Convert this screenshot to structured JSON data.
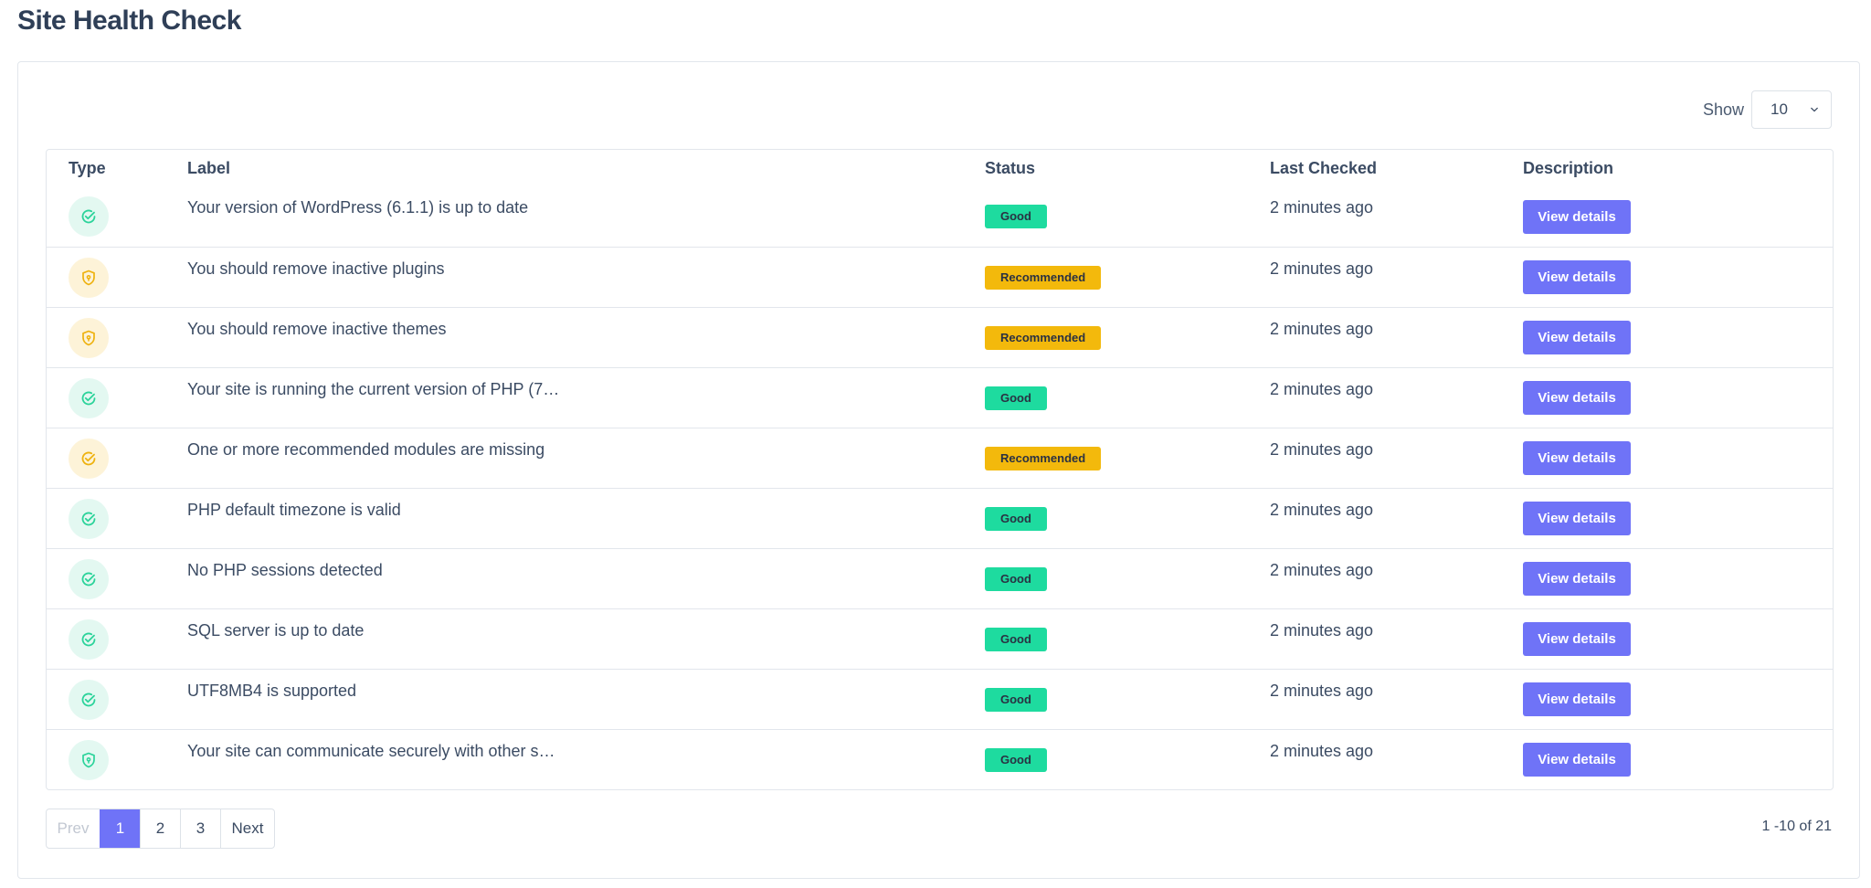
{
  "page": {
    "title": "Site Health Check"
  },
  "show": {
    "label": "Show",
    "value": "10"
  },
  "table": {
    "headers": {
      "type": "Type",
      "label": "Label",
      "status": "Status",
      "last_checked": "Last Checked",
      "description": "Description"
    },
    "rows": [
      {
        "icon": "check-circle-icon",
        "tone": "good",
        "label": "Your version of WordPress (6.1.1) is up to date",
        "status": "Good",
        "last_checked": "2 minutes ago",
        "action": "View details"
      },
      {
        "icon": "shield-icon",
        "tone": "rec",
        "label": "You should remove inactive plugins",
        "status": "Recommended",
        "last_checked": "2 minutes ago",
        "action": "View details"
      },
      {
        "icon": "shield-icon",
        "tone": "rec",
        "label": "You should remove inactive themes",
        "status": "Recommended",
        "last_checked": "2 minutes ago",
        "action": "View details"
      },
      {
        "icon": "check-circle-icon",
        "tone": "good",
        "label": "Your site is running the current version of PHP (7…",
        "status": "Good",
        "last_checked": "2 minutes ago",
        "action": "View details"
      },
      {
        "icon": "check-circle-icon",
        "tone": "rec",
        "label": "One or more recommended modules are missing",
        "status": "Recommended",
        "last_checked": "2 minutes ago",
        "action": "View details"
      },
      {
        "icon": "check-circle-icon",
        "tone": "good",
        "label": "PHP default timezone is valid",
        "status": "Good",
        "last_checked": "2 minutes ago",
        "action": "View details"
      },
      {
        "icon": "check-circle-icon",
        "tone": "good",
        "label": "No PHP sessions detected",
        "status": "Good",
        "last_checked": "2 minutes ago",
        "action": "View details"
      },
      {
        "icon": "check-circle-icon",
        "tone": "good",
        "label": "SQL server is up to date",
        "status": "Good",
        "last_checked": "2 minutes ago",
        "action": "View details"
      },
      {
        "icon": "check-circle-icon",
        "tone": "good",
        "label": "UTF8MB4 is supported",
        "status": "Good",
        "last_checked": "2 minutes ago",
        "action": "View details"
      },
      {
        "icon": "shield-icon",
        "tone": "good",
        "label": "Your site can communicate securely with other s…",
        "status": "Good",
        "last_checked": "2 minutes ago",
        "action": "View details"
      }
    ]
  },
  "pagination": {
    "prev": "Prev",
    "pages": [
      "1",
      "2",
      "3"
    ],
    "current": "1",
    "next": "Next",
    "info": "1 -10 of 21"
  },
  "colors": {
    "good": "#1edb9f",
    "recommended": "#f3b90c",
    "accent": "#6f73f7",
    "good_icon": "#2bd39a",
    "rec_icon": "#eeb20f"
  }
}
